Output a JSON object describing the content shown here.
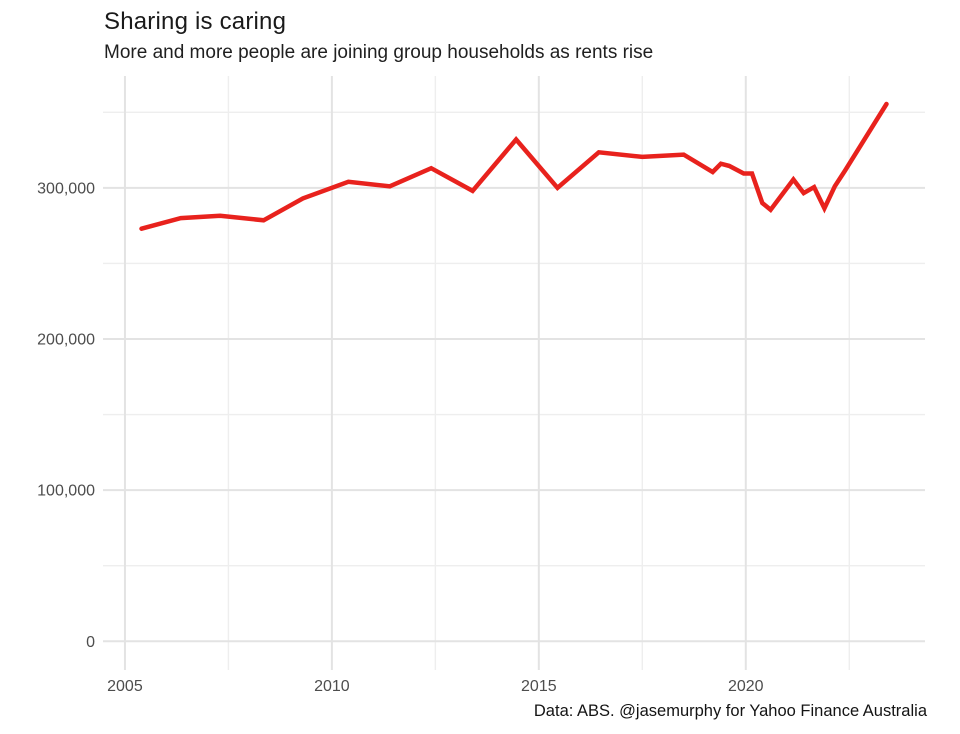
{
  "chart_data": {
    "type": "line",
    "title": "Sharing is caring",
    "subtitle": "More and more people are joining group households as rents rise",
    "caption": "Data: ABS. @jasemurphy for Yahoo Finance Australia",
    "series_name": "Group households",
    "xlabel": "",
    "ylabel": "",
    "legend": "none",
    "grid": true,
    "x": [
      2005.4,
      2006.35,
      2007.3,
      2008.35,
      2009.3,
      2010.4,
      2011.4,
      2012.4,
      2013.4,
      2014.45,
      2015.45,
      2016.45,
      2017.5,
      2018.5,
      2019.2,
      2019.4,
      2019.6,
      2019.95,
      2020.15,
      2020.4,
      2020.6,
      2021.15,
      2021.4,
      2021.65,
      2021.9,
      2022.15,
      2022.4,
      2023.4
    ],
    "values": [
      273000,
      280000,
      281500,
      278500,
      293000,
      304000,
      301000,
      313000,
      298000,
      332000,
      300000,
      323500,
      320500,
      322000,
      310500,
      316000,
      314500,
      309500,
      309500,
      290000,
      285500,
      305500,
      296500,
      300500,
      286500,
      301000,
      311500,
      355500
    ],
    "xlim": [
      2004.47,
      2024.33
    ],
    "ylim": [
      -19000,
      374000
    ],
    "x_major_ticks": [
      2005,
      2010,
      2015,
      2020
    ],
    "x_minor_ticks": [
      2007.5,
      2012.5,
      2017.5,
      2022.5
    ],
    "y_major_ticks": [
      0,
      100000,
      200000,
      300000
    ],
    "y_minor_ticks": [
      50000,
      150000,
      250000,
      350000
    ],
    "line_color": "#e8221d",
    "grid_major_color": "#e3e3e3",
    "grid_minor_color": "#eeeeee",
    "tick_label_color": "#4d4d4d",
    "text_color": "#1a1a1a",
    "background": "#ffffff"
  }
}
